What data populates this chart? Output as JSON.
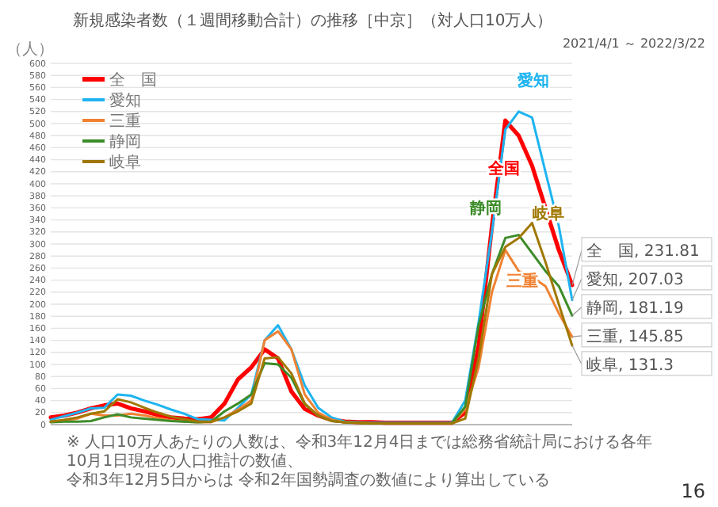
{
  "chart_data": {
    "type": "line",
    "title": "新規感染者数（１週間移動合計）の推移［中京］（対人口10万人）",
    "subtitle": "2021/4/1 ～ 2022/3/22",
    "ylabel": "（人）",
    "categories": [
      null,
      null,
      null,
      null,
      null,
      null,
      null,
      null,
      null,
      null,
      null,
      null,
      null,
      null,
      null,
      null,
      null,
      null,
      null,
      null,
      null,
      null,
      null,
      null,
      null,
      null,
      null,
      null,
      null,
      null,
      null,
      null,
      null,
      null,
      null,
      null,
      null,
      null,
      null,
      null
    ],
    "ylim": [
      0,
      600
    ],
    "yticks": [
      0,
      20,
      40,
      60,
      80,
      100,
      120,
      140,
      160,
      180,
      200,
      220,
      240,
      260,
      280,
      300,
      320,
      340,
      360,
      380,
      400,
      420,
      440,
      460,
      480,
      500,
      520,
      540,
      560,
      580,
      600
    ],
    "tick_labels": "y",
    "grid": "y",
    "legend": "top left",
    "marker": "none",
    "line_style": "solid",
    "series": [
      {
        "name": "全　国",
        "color": "#ff0000",
        "values": [
          12,
          15,
          20,
          27,
          32,
          35,
          27,
          22,
          16,
          12,
          10,
          9,
          12,
          35,
          75,
          95,
          125,
          110,
          55,
          26,
          15,
          8,
          5,
          4,
          4,
          3,
          3,
          3,
          3,
          3,
          3,
          20,
          130,
          330,
          505,
          480,
          430,
          360,
          290,
          231.81
        ],
        "value_labels": [
          null,
          null,
          null,
          null,
          null,
          null,
          null,
          null,
          null,
          null,
          null,
          null,
          null,
          null,
          null,
          null,
          null,
          null,
          null,
          null,
          null,
          null,
          null,
          null,
          null,
          null,
          null,
          null,
          null,
          null,
          null,
          null,
          null,
          null,
          null,
          null,
          null,
          null,
          null,
          "全　国, 231.81"
        ]
      },
      {
        "name": "愛知",
        "color": "#1eb4f0",
        "values": [
          8,
          14,
          20,
          27,
          28,
          50,
          48,
          40,
          33,
          25,
          18,
          9,
          8,
          7,
          28,
          50,
          140,
          165,
          125,
          65,
          28,
          12,
          5,
          4,
          3,
          3,
          3,
          3,
          3,
          3,
          3,
          40,
          170,
          320,
          490,
          520,
          510,
          420,
          330,
          207.03
        ],
        "value_labels": [
          null,
          null,
          null,
          null,
          null,
          null,
          null,
          null,
          null,
          null,
          null,
          null,
          null,
          null,
          null,
          null,
          null,
          null,
          null,
          null,
          null,
          null,
          null,
          null,
          null,
          null,
          null,
          null,
          null,
          null,
          null,
          null,
          null,
          null,
          null,
          null,
          null,
          null,
          null,
          "愛知, 207.03"
        ]
      },
      {
        "name": "三重",
        "color": "#f08232",
        "values": [
          5,
          7,
          10,
          18,
          15,
          15,
          18,
          15,
          11,
          7,
          5,
          4,
          4,
          12,
          25,
          40,
          140,
          155,
          125,
          50,
          20,
          8,
          4,
          3,
          2,
          2,
          2,
          2,
          2,
          2,
          2,
          25,
          95,
          220,
          290,
          255,
          245,
          230,
          185,
          145.85
        ],
        "value_labels": [
          null,
          null,
          null,
          null,
          null,
          null,
          null,
          null,
          null,
          null,
          null,
          null,
          null,
          null,
          null,
          null,
          null,
          null,
          null,
          null,
          null,
          null,
          null,
          null,
          null,
          null,
          null,
          null,
          null,
          null,
          null,
          null,
          null,
          null,
          null,
          null,
          null,
          null,
          null,
          "三重, 145.85"
        ]
      },
      {
        "name": "静岡",
        "color": "#3c8c28",
        "values": [
          4,
          5,
          5,
          6,
          12,
          17,
          12,
          10,
          8,
          6,
          5,
          4,
          5,
          22,
          35,
          50,
          102,
          100,
          78,
          34,
          15,
          6,
          4,
          3,
          2,
          2,
          2,
          2,
          2,
          2,
          2,
          30,
          165,
          250,
          310,
          315,
          285,
          255,
          230,
          181.19
        ],
        "value_labels": [
          null,
          null,
          null,
          null,
          null,
          null,
          null,
          null,
          null,
          null,
          null,
          null,
          null,
          null,
          null,
          null,
          null,
          null,
          null,
          null,
          null,
          null,
          null,
          null,
          null,
          null,
          null,
          null,
          null,
          null,
          null,
          null,
          null,
          null,
          null,
          null,
          null,
          null,
          null,
          "静岡, 181.19"
        ]
      },
      {
        "name": "岐阜",
        "color": "#a07800",
        "values": [
          5,
          8,
          12,
          18,
          22,
          42,
          37,
          28,
          20,
          13,
          9,
          5,
          5,
          12,
          22,
          35,
          110,
          112,
          85,
          35,
          15,
          6,
          4,
          3,
          2,
          2,
          2,
          2,
          2,
          2,
          2,
          10,
          110,
          250,
          295,
          310,
          335,
          270,
          200,
          131.3
        ],
        "value_labels": [
          null,
          null,
          null,
          null,
          null,
          null,
          null,
          null,
          null,
          null,
          null,
          null,
          null,
          null,
          null,
          null,
          null,
          null,
          null,
          null,
          null,
          null,
          null,
          null,
          null,
          null,
          null,
          null,
          null,
          null,
          null,
          null,
          null,
          null,
          null,
          null,
          null,
          null,
          null,
          "岐阜, 131.3"
        ]
      }
    ],
    "annotations": [
      "愛知",
      "全国",
      "静岡",
      "岐阜",
      "三重",
      "※ 人口10万人あたりの人数は、令和3年12月4日までは総務省統計局における各年10月1日現在の人口推計の数値、",
      "令和3年12月5日からは 令和2年国勢調査の数値により算出している",
      "16"
    ]
  }
}
